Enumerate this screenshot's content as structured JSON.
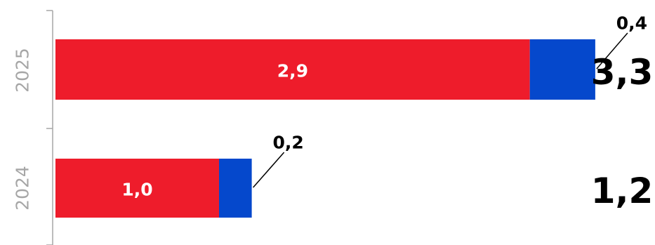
{
  "chart_data": {
    "type": "bar",
    "orientation": "horizontal",
    "stacked": true,
    "categories": [
      "2025",
      "2024"
    ],
    "series": [
      {
        "values": [
          2.9,
          1.0
        ],
        "labels": [
          "2,9",
          "1,0"
        ],
        "color": "#ee1c2b"
      },
      {
        "values": [
          0.4,
          0.2
        ],
        "labels": [
          "0,4",
          "0,2"
        ],
        "color": "#0548cc"
      }
    ],
    "totals": [
      "3,3",
      "1,2"
    ],
    "axis_color": "#a6a6a6",
    "grid": false,
    "legend": "none"
  }
}
